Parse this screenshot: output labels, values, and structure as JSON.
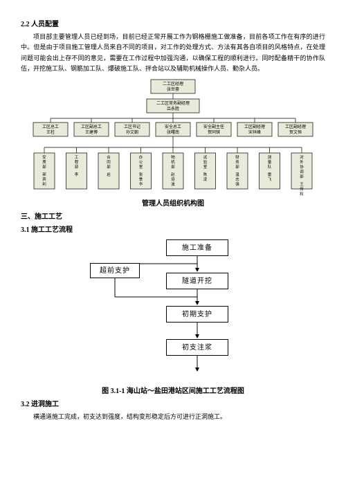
{
  "sec22_title": "2.2 人员配置",
  "p1": "项目部主要管理人员已经到场，目前已经正常开展工作为钢格栅施工做准备，目前各项工作在有序的进行中。但是由于项目施工管理人员来自不同的项目，对工作的处理方式、方法有其各自项目的风格特点，在处理问题可能会出上存不同的意见，需要在工作过程中加强沟通，以确保工程的顺利进行。同时配备精干的协作队伍，开挖施工队、钢筋加工队、爆破施工队、拌合站以及辅助机械操作人员、勤杂人员。",
  "org": {
    "top": {
      "l1": "二工区经理",
      "l2": "张世豪"
    },
    "mid": {
      "l1": "二工区常务副经理",
      "l2": "吕永胜"
    },
    "row3": [
      {
        "l1": "工区总工",
        "l2": "王柱"
      },
      {
        "l1": "工区副总工",
        "l2": "王建博"
      },
      {
        "l1": "工区书记",
        "l2": "孙文朝"
      },
      {
        "l1": "安全总工",
        "l2": "张曙南"
      },
      {
        "l1": "安全副主任",
        "l2": "贺同镔"
      },
      {
        "l1": "工区副经理",
        "l2": "宋祥峰"
      },
      {
        "l1": "工区副经理",
        "l2": "贺文恒"
      }
    ],
    "row4": [
      {
        "l1": "安质部",
        "l2": "郝宾利"
      },
      {
        "l1": "工程部",
        "l2": "李"
      },
      {
        "l1": "合同部",
        "l2": "岩"
      },
      {
        "l1": "办公室",
        "l2": "张季华"
      },
      {
        "l1": "物机部",
        "l2": "赵培波"
      },
      {
        "l1": "试验室",
        "l2": "陈凌"
      },
      {
        "l1": "财务部",
        "l2": "温志强"
      },
      {
        "l1": "测量队",
        "l2": "雷飞"
      },
      {
        "l1": "对外协调部",
        "l2": "王传权"
      }
    ]
  },
  "org_caption": "管理人员组织机构图",
  "sec3_title": "三、施工工艺",
  "sec31_title": "3.1 施工工艺流程",
  "flow": {
    "side": "超前支护",
    "steps": [
      "施工准备",
      "隧道开挖",
      "初期支护",
      "初支注浆"
    ]
  },
  "flow_caption": "图 3.1-1 海山站～盐田港站区间施工工艺流程图",
  "sec32_title": "3.2 进洞施工",
  "p2": "横通道施工完成，初支达到强度，结构变形稳定后方可进行正洞施工。",
  "colors": {
    "line": "#000000",
    "fill": "#e8ebd9",
    "flowfill": "#ffffff"
  }
}
